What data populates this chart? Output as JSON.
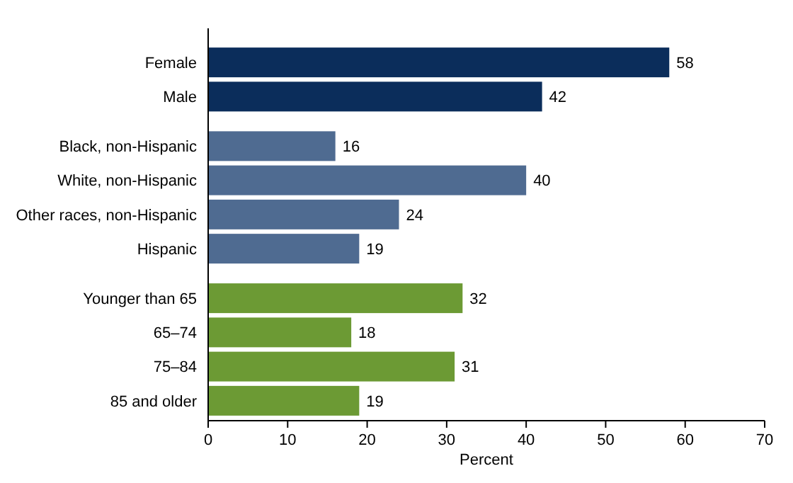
{
  "chart_data": {
    "type": "bar",
    "orientation": "horizontal",
    "xlabel": "Percent",
    "categories": [
      "Female",
      "Male",
      "Black, non-Hispanic",
      "White, non-Hispanic",
      "Other races, non-Hispanic",
      "Hispanic",
      "Younger than 65",
      "65–74",
      "75–84",
      "85 and older"
    ],
    "values": [
      58,
      42,
      16,
      40,
      24,
      19,
      32,
      18,
      31,
      19
    ],
    "colors": [
      "#0b2d5b",
      "#0b2d5b",
      "#4f6b91",
      "#4f6b91",
      "#4f6b91",
      "#4f6b91",
      "#6c9a34",
      "#6c9a34",
      "#6c9a34",
      "#6c9a34"
    ],
    "xlim": [
      0,
      70
    ],
    "xticks": [
      0,
      10,
      20,
      30,
      40,
      50,
      60,
      70
    ],
    "data_labels": true,
    "grid": false
  }
}
